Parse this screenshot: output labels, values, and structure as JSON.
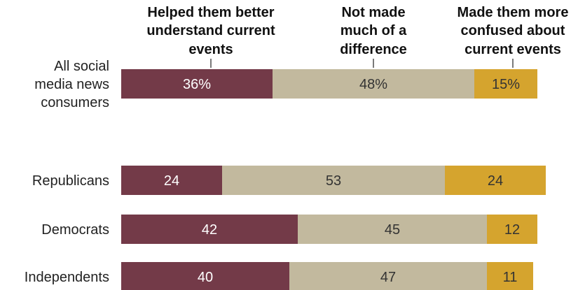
{
  "chart_data": {
    "type": "bar",
    "orientation": "horizontal",
    "stacked": true,
    "legend_placement": "top (column headers above first bar)",
    "grid": false,
    "series": [
      {
        "name": "Helped them better understand current events",
        "label_lines": [
          "Helped them better",
          "understand current",
          "events"
        ],
        "color": "#733a48",
        "text_color": "#ffffff"
      },
      {
        "name": "Not made much of a difference",
        "label_lines": [
          "Not made",
          "much of a",
          "difference"
        ],
        "color": "#c2b99e",
        "text_color": "#333333"
      },
      {
        "name": "Made them more confused about current events",
        "label_lines": [
          "Made them more",
          "confused about",
          "current events"
        ],
        "color": "#d5a42e",
        "text_color": "#333333"
      }
    ],
    "categories": [
      {
        "label_lines": [
          "All social",
          "media news",
          "consumers"
        ],
        "values": [
          36,
          48,
          15
        ],
        "labels": [
          "36%",
          "48%",
          "15%"
        ]
      },
      {
        "label_lines": [
          "Republicans"
        ],
        "values": [
          24,
          53,
          24
        ],
        "labels": [
          "24",
          "53",
          "24"
        ]
      },
      {
        "label_lines": [
          "Democrats"
        ],
        "values": [
          42,
          45,
          12
        ],
        "labels": [
          "42",
          "45",
          "12"
        ]
      },
      {
        "label_lines": [
          "Independents"
        ],
        "values": [
          40,
          47,
          11
        ],
        "labels": [
          "40",
          "47",
          "11"
        ]
      }
    ],
    "xlim": [
      0,
      101
    ]
  }
}
